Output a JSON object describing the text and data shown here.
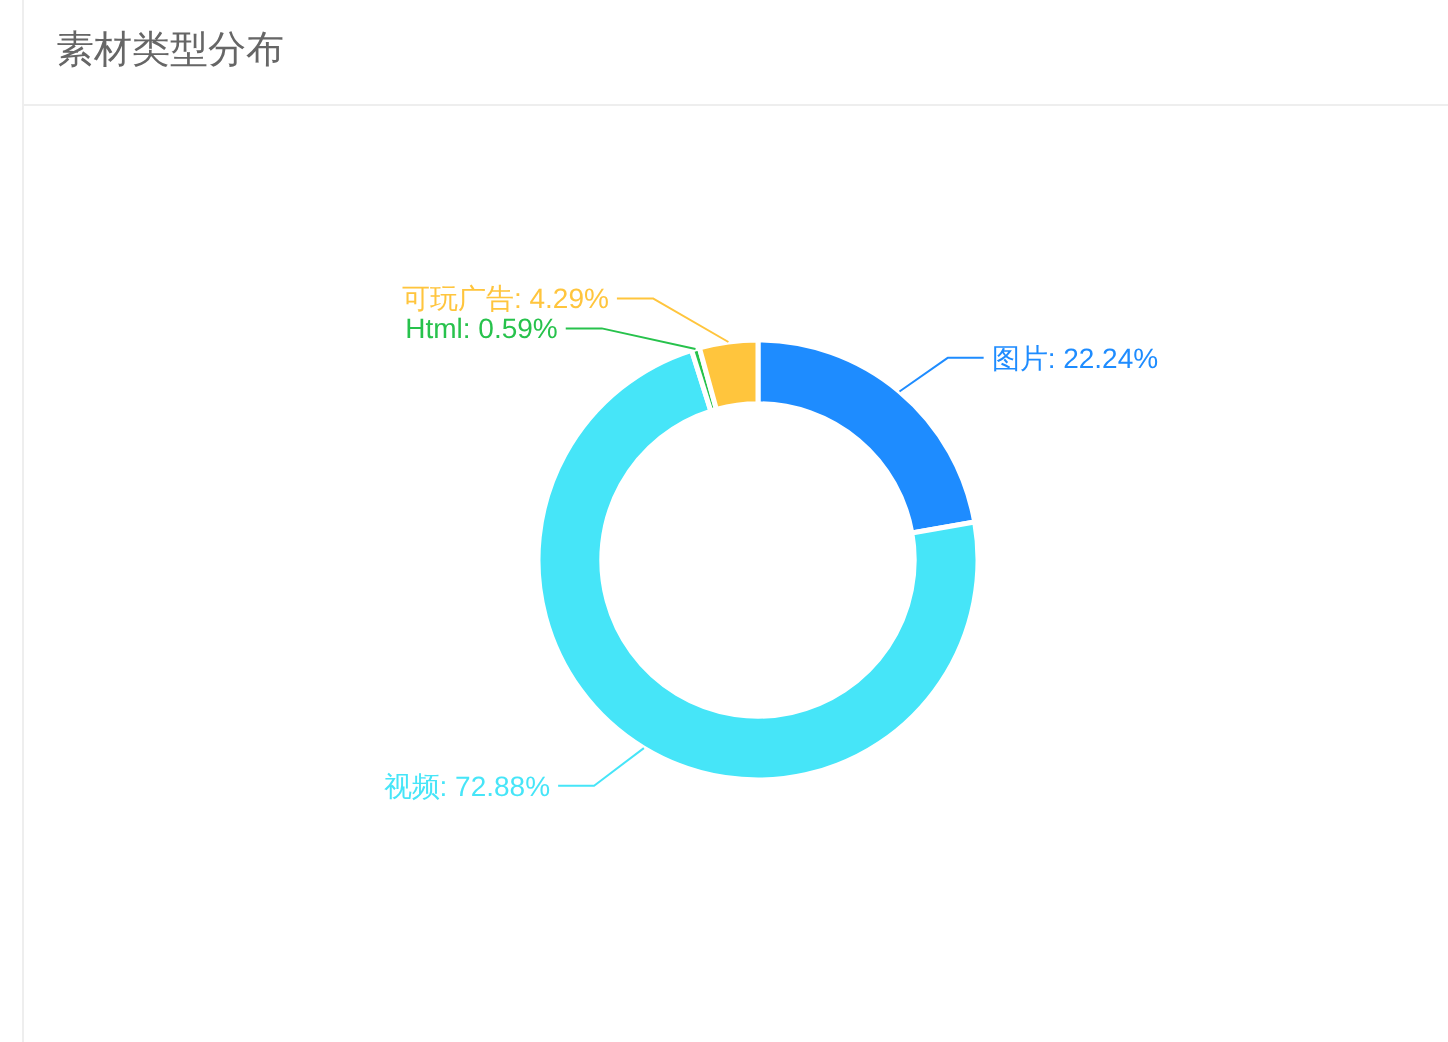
{
  "chart_data": {
    "type": "donut",
    "title": "素材类型分布",
    "categories": [
      "图片",
      "视频",
      "Html",
      "可玩广告"
    ],
    "values": [
      22.24,
      72.88,
      0.59,
      4.29
    ],
    "value_labels": [
      "22.24%",
      "72.88%",
      "0.59%",
      "4.29%"
    ],
    "colors": [
      "#1e8cff",
      "#46e5f8",
      "#27c24c",
      "#ffc53d"
    ]
  }
}
